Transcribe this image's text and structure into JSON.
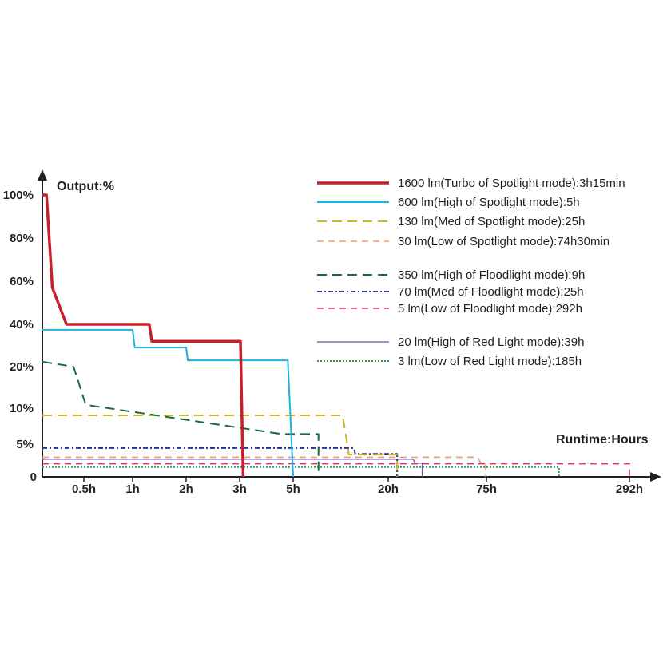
{
  "chart_data": {
    "type": "line",
    "title": "",
    "ylabel": "Output:%",
    "xlabel": "Runtime:Hours",
    "x_scale": "piecewise (non-linear)",
    "x_ticks": [
      {
        "value": 0.5,
        "label": "0.5h"
      },
      {
        "value": 1,
        "label": "1h"
      },
      {
        "value": 2,
        "label": "2h"
      },
      {
        "value": 3,
        "label": "3h"
      },
      {
        "value": 5,
        "label": "5h"
      },
      {
        "value": 20,
        "label": "20h"
      },
      {
        "value": 75,
        "label": "75h"
      },
      {
        "value": 292,
        "label": "292h"
      }
    ],
    "y_ticks": [
      {
        "value": 0,
        "label": "0"
      },
      {
        "value": 5,
        "label": "5%"
      },
      {
        "value": 10,
        "label": "10%"
      },
      {
        "value": 20,
        "label": "20%"
      },
      {
        "value": 40,
        "label": "40%"
      },
      {
        "value": 60,
        "label": "60%"
      },
      {
        "value": 80,
        "label": "80%"
      },
      {
        "value": 100,
        "label": "100%"
      }
    ],
    "ylim": [
      0,
      100
    ],
    "xlim": [
      0,
      292
    ],
    "grid": false,
    "legend_position": "top-right",
    "series": [
      {
        "name": "1600 lm(Turbo of Spotlight mode):3h15min",
        "color": "#c8202a",
        "style": "solid-thick",
        "x": [
          0,
          0.05,
          0.12,
          0.29,
          1.31,
          1.36,
          3.03,
          3.13
        ],
        "y": [
          100,
          100,
          57,
          40,
          40,
          32,
          32,
          0
        ]
      },
      {
        "name": "600 lm(High of Spotlight mode):5h",
        "color": "#1fb1e6",
        "style": "solid",
        "x": [
          0,
          1,
          1.04,
          2,
          2.03,
          4.8,
          5
        ],
        "y": [
          37.4,
          37.4,
          29,
          29,
          23,
          23,
          0
        ]
      },
      {
        "name": "130 lm(Med of Spotlight mode):25h",
        "color": "#c9b82a",
        "style": "dash-long",
        "x": [
          0,
          12.8,
          13.8,
          25,
          25
        ],
        "y": [
          9,
          9,
          3.4,
          3.4,
          0
        ]
      },
      {
        "name": "30 lm(Low of Spotlight mode):74h30min",
        "color": "#ee9a6a",
        "style": "dash",
        "x": [
          0,
          70,
          72,
          74.5,
          74.5
        ],
        "y": [
          3,
          3,
          2.1,
          2.1,
          0
        ]
      },
      {
        "name": "350 lm(High of Floodlight mode):9h",
        "color": "#1d6b3a",
        "style": "dash-long",
        "x": [
          0,
          0.375,
          0.52,
          4.58,
          9,
          9
        ],
        "y": [
          22.3,
          20,
          10.8,
          6.4,
          6.4,
          0
        ]
      },
      {
        "name": "70 lm(Med of Floodlight mode):25h",
        "color": "#26358f",
        "style": "dash-dot",
        "x": [
          0,
          14.6,
          14.8,
          25,
          25
        ],
        "y": [
          4.4,
          4.4,
          3.5,
          3.5,
          0
        ]
      },
      {
        "name": "5 lm(Low of Floodlight mode):292h",
        "color": "#e8237c",
        "style": "dash",
        "x": [
          0,
          292,
          292
        ],
        "y": [
          2,
          2,
          0
        ]
      },
      {
        "name": "20 lm(High of Red Light mode):39h",
        "color": "#7b4bb0",
        "style": "solid-thin",
        "x": [
          0,
          34,
          35,
          39,
          39
        ],
        "y": [
          2.7,
          2.7,
          2.1,
          2.1,
          0
        ]
      },
      {
        "name": "3 lm(Low of Red Light mode):185h",
        "color": "#2ea44a",
        "style": "dot",
        "x": [
          0,
          185,
          185
        ],
        "y": [
          1.5,
          1.5,
          0
        ]
      }
    ]
  }
}
